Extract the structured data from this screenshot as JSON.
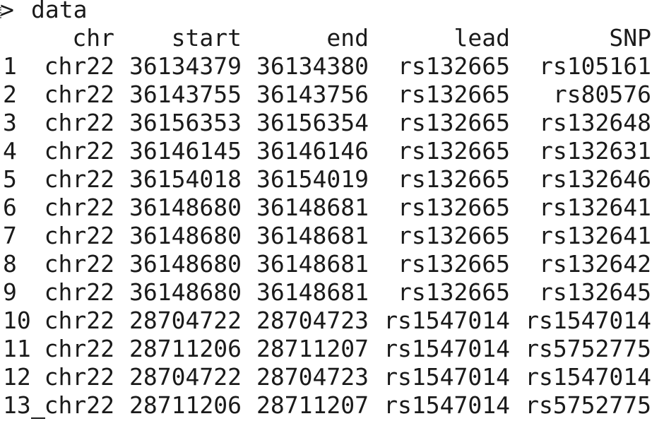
{
  "console": {
    "prompt": ">",
    "command": "data"
  },
  "table": {
    "columns": [
      "chr",
      "start",
      "end",
      "lead",
      "SNP"
    ],
    "rows": [
      {
        "id": "1",
        "chr": "chr22",
        "start": "36134379",
        "end": "36134380",
        "lead": "rs132665",
        "SNP": "rs105161"
      },
      {
        "id": "2",
        "chr": "chr22",
        "start": "36143755",
        "end": "36143756",
        "lead": "rs132665",
        "SNP": "rs80576"
      },
      {
        "id": "3",
        "chr": "chr22",
        "start": "36156353",
        "end": "36156354",
        "lead": "rs132665",
        "SNP": "rs132648"
      },
      {
        "id": "4",
        "chr": "chr22",
        "start": "36146145",
        "end": "36146146",
        "lead": "rs132665",
        "SNP": "rs132631"
      },
      {
        "id": "5",
        "chr": "chr22",
        "start": "36154018",
        "end": "36154019",
        "lead": "rs132665",
        "SNP": "rs132646"
      },
      {
        "id": "6",
        "chr": "chr22",
        "start": "36148680",
        "end": "36148681",
        "lead": "rs132665",
        "SNP": "rs132641"
      },
      {
        "id": "7",
        "chr": "chr22",
        "start": "36148680",
        "end": "36148681",
        "lead": "rs132665",
        "SNP": "rs132641"
      },
      {
        "id": "8",
        "chr": "chr22",
        "start": "36148680",
        "end": "36148681",
        "lead": "rs132665",
        "SNP": "rs132642"
      },
      {
        "id": "9",
        "chr": "chr22",
        "start": "36148680",
        "end": "36148681",
        "lead": "rs132665",
        "SNP": "rs132645"
      },
      {
        "id": "10",
        "chr": "chr22",
        "start": "28704722",
        "end": "28704723",
        "lead": "rs1547014",
        "SNP": "rs1547014"
      },
      {
        "id": "11",
        "chr": "chr22",
        "start": "28711206",
        "end": "28711207",
        "lead": "rs1547014",
        "SNP": "rs5752775"
      },
      {
        "id": "12",
        "chr": "chr22",
        "start": "28704722",
        "end": "28704723",
        "lead": "rs1547014",
        "SNP": "rs1547014"
      },
      {
        "id": "13",
        "chr": "chr22",
        "start": "28711206",
        "end": "28711207",
        "lead": "rs1547014",
        "SNP": "rs5752775"
      }
    ]
  }
}
